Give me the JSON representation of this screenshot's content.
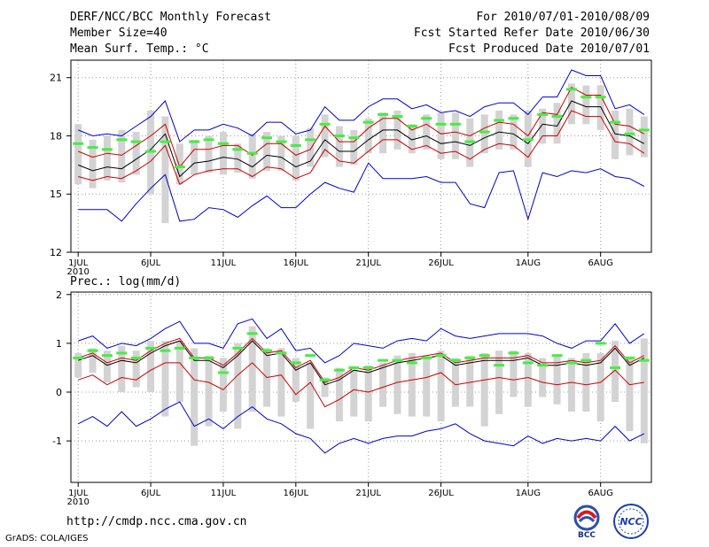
{
  "header": {
    "title": "DERF/NCC/BCC Monthly Forecast",
    "member_size": "Member Size=40",
    "variable": "Mean Surf. Temp.: °C",
    "period": "For 2010/07/01-2010/08/09",
    "started": "Fcst Started Refer Date 2010/06/30",
    "produced": "Fcst Produced Date 2010/07/01"
  },
  "footer": {
    "url": "http://cmdp.ncc.cma.gov.cn",
    "grads": "GrADS: COLA/IGES",
    "logo_bcc_text": "BCC",
    "logo_ncc_text": "NCC"
  },
  "colors": {
    "max": "#0000cc",
    "min": "#0000cc",
    "mean": "#000000",
    "spread": "#cc0000",
    "box": "#d3d3d3",
    "median": "#44ee44"
  },
  "chart_data": [
    {
      "type": "line",
      "title": "Mean Surf. Temp.: °C",
      "ylim": [
        12,
        21.9
      ],
      "yticks": [
        12,
        15,
        18,
        21
      ],
      "xlim": [
        0.5,
        40.5
      ],
      "xticks": [
        {
          "day": 1,
          "label": "1JUL"
        },
        {
          "day": 6,
          "label": "6JUL"
        },
        {
          "day": 11,
          "label": "11JUL"
        },
        {
          "day": 16,
          "label": "16JUL"
        },
        {
          "day": 21,
          "label": "21JUL"
        },
        {
          "day": 26,
          "label": "26JUL"
        },
        {
          "day": 32,
          "label": "1AUG"
        },
        {
          "day": 37,
          "label": "6AUG"
        }
      ],
      "year_label": "2010",
      "grid": true,
      "series": [
        {
          "name": "max",
          "values": [
            18.3,
            18,
            18.1,
            18,
            18.5,
            19,
            19.8,
            17.7,
            18.3,
            18.3,
            18.6,
            18.4,
            18,
            18.7,
            18.7,
            18.1,
            18.3,
            19.5,
            18.8,
            18.8,
            19.5,
            19.9,
            19.9,
            19.4,
            19.6,
            19.2,
            19.3,
            19,
            19.5,
            19.7,
            19.7,
            19.1,
            20,
            20,
            21.4,
            21.1,
            21.1,
            19.4,
            19.6,
            19.1
          ]
        },
        {
          "name": "upper",
          "values": [
            17.2,
            16.9,
            17.1,
            17,
            17.5,
            18,
            18.6,
            16.4,
            17.3,
            17.3,
            17.5,
            17.5,
            17,
            17.6,
            17.6,
            17,
            17.3,
            18.5,
            17.7,
            17.7,
            18.4,
            18.9,
            18.9,
            18.3,
            18.6,
            18.1,
            18.2,
            18,
            18.4,
            18.7,
            18.6,
            18,
            19.2,
            19.1,
            20.5,
            20.1,
            20.1,
            18.6,
            18.5,
            18.1
          ]
        },
        {
          "name": "mean",
          "values": [
            16.5,
            16.2,
            16.4,
            16.3,
            16.8,
            17.3,
            18.1,
            15.9,
            16.6,
            16.7,
            16.9,
            16.8,
            16.4,
            17,
            16.9,
            16.4,
            16.7,
            17.8,
            17.2,
            17.2,
            17.8,
            18.3,
            18.3,
            17.8,
            18,
            17.6,
            17.7,
            17.5,
            17.9,
            18.2,
            18.1,
            17.6,
            18.6,
            18.5,
            19.8,
            19.5,
            19.5,
            18.1,
            18,
            17.6
          ]
        },
        {
          "name": "lower",
          "values": [
            15.9,
            15.7,
            15.9,
            15.8,
            16.2,
            16.7,
            17.5,
            15.5,
            16,
            16.2,
            16.3,
            16.3,
            15.9,
            16.4,
            16.3,
            15.8,
            16.1,
            17.3,
            16.7,
            16.6,
            17.2,
            17.8,
            17.8,
            17.3,
            17.5,
            17.1,
            17.2,
            16.8,
            17.3,
            17.6,
            17.5,
            16.9,
            18,
            18,
            19.3,
            19,
            19,
            17.7,
            17.6,
            17.1
          ]
        },
        {
          "name": "min",
          "values": [
            14.2,
            14.2,
            14.2,
            13.6,
            14.5,
            15.3,
            16,
            13.6,
            13.7,
            14.3,
            14.2,
            13.8,
            14.4,
            14.9,
            14.3,
            14.3,
            15,
            15.6,
            15.3,
            15.1,
            16.6,
            15.8,
            15.8,
            15.8,
            15.9,
            15.6,
            15.6,
            14.5,
            14.3,
            16.1,
            16.2,
            13.7,
            16.1,
            15.9,
            16.2,
            16.1,
            16.3,
            15.9,
            15.8,
            15.4
          ]
        }
      ],
      "box_low": [
        15.5,
        15.3,
        15.7,
        15.6,
        16,
        15,
        13.5,
        15.5,
        16,
        16.1,
        16,
        16.1,
        15.8,
        16.2,
        16.2,
        15.7,
        16.4,
        16.9,
        16.4,
        16.5,
        17.1,
        17.1,
        17.3,
        17.1,
        17.3,
        16.8,
        16.8,
        16.4,
        17.1,
        17.3,
        17.3,
        16.4,
        17.6,
        17.6,
        18.6,
        18.6,
        18.3,
        16.8,
        17,
        16.9
      ],
      "box_high": [
        18.6,
        17.8,
        18,
        18.3,
        18.2,
        19.3,
        19,
        17.6,
        17.8,
        18,
        18.2,
        17.6,
        18.1,
        18.2,
        18,
        18,
        18.4,
        19.1,
        18.5,
        18.3,
        18.9,
        19.2,
        19.3,
        18.6,
        19.1,
        19.2,
        19.2,
        18.9,
        19.1,
        19.3,
        19.1,
        19.3,
        19.4,
        19.7,
        20.7,
        20.6,
        20.6,
        19.3,
        19.4,
        19
      ],
      "median": [
        17.6,
        17.4,
        17.3,
        17.8,
        17.7,
        17.2,
        17.7,
        16.4,
        17.7,
        17.8,
        17.6,
        17.3,
        17.1,
        17.9,
        17.7,
        17.5,
        17.8,
        18.6,
        18,
        17.9,
        18.7,
        19.1,
        19,
        18.5,
        18.9,
        18.6,
        18.6,
        17.7,
        18.2,
        18.8,
        18.9,
        17.8,
        19.1,
        19,
        20.4,
        20,
        20,
        18.7,
        18.1,
        18.3
      ]
    },
    {
      "type": "line",
      "title": "Prec.: log(mm/d)",
      "ylim": [
        -1.85,
        2.05
      ],
      "yticks": [
        -1,
        0,
        1,
        2
      ],
      "xlim": [
        0.5,
        40.5
      ],
      "xticks": [
        {
          "day": 1,
          "label": "1JUL"
        },
        {
          "day": 6,
          "label": "6JUL"
        },
        {
          "day": 11,
          "label": "11JUL"
        },
        {
          "day": 16,
          "label": "16JUL"
        },
        {
          "day": 21,
          "label": "21JUL"
        },
        {
          "day": 26,
          "label": "26JUL"
        },
        {
          "day": 32,
          "label": "1AUG"
        },
        {
          "day": 37,
          "label": "6AUG"
        }
      ],
      "year_label": "2010",
      "grid": true,
      "series": [
        {
          "name": "max",
          "values": [
            1.05,
            1.15,
            0.9,
            1,
            0.95,
            1.1,
            1.3,
            1.45,
            1,
            1,
            0.9,
            1.4,
            1.5,
            1.1,
            1.3,
            0.85,
            0.9,
            0.6,
            0.75,
            1,
            0.95,
            0.9,
            1.05,
            1.1,
            1.05,
            1.3,
            1.15,
            1.1,
            1.15,
            1.2,
            1.2,
            1.2,
            1.15,
            1,
            0.9,
            1.05,
            1.05,
            1.4,
            1,
            1.2
          ]
        },
        {
          "name": "upper",
          "values": [
            0.7,
            0.8,
            0.6,
            0.7,
            0.65,
            0.85,
            1,
            1.1,
            0.7,
            0.7,
            0.55,
            0.8,
            1.1,
            0.8,
            0.85,
            0.5,
            0.65,
            0.2,
            0.3,
            0.5,
            0.45,
            0.55,
            0.65,
            0.7,
            0.75,
            0.8,
            0.6,
            0.65,
            0.7,
            0.7,
            0.7,
            0.75,
            0.6,
            0.6,
            0.65,
            0.6,
            0.65,
            0.95,
            0.6,
            0.75
          ]
        },
        {
          "name": "mean",
          "values": [
            0.65,
            0.75,
            0.55,
            0.65,
            0.6,
            0.8,
            0.95,
            1.05,
            0.65,
            0.65,
            0.5,
            0.75,
            1.05,
            0.75,
            0.8,
            0.45,
            0.6,
            0.15,
            0.25,
            0.45,
            0.4,
            0.5,
            0.6,
            0.65,
            0.7,
            0.75,
            0.55,
            0.6,
            0.65,
            0.65,
            0.65,
            0.7,
            0.55,
            0.55,
            0.6,
            0.55,
            0.6,
            0.9,
            0.55,
            0.7
          ]
        },
        {
          "name": "lower",
          "values": [
            0.25,
            0.35,
            0.15,
            0.3,
            0.25,
            0.45,
            0.6,
            0.6,
            0.25,
            0.2,
            0.05,
            0.35,
            0.6,
            0.3,
            0.35,
            -0.05,
            0.2,
            -0.3,
            -0.15,
            0.05,
            0,
            0.1,
            0.2,
            0.25,
            0.3,
            0.4,
            0.15,
            0.2,
            0.25,
            0.3,
            0.25,
            0.3,
            0.2,
            0.15,
            0.2,
            0.15,
            0.2,
            0.45,
            0.15,
            0.2
          ]
        },
        {
          "name": "min",
          "values": [
            -0.65,
            -0.5,
            -0.7,
            -0.4,
            -0.7,
            -0.55,
            -0.35,
            -0.2,
            -0.7,
            -0.55,
            -0.75,
            -0.5,
            -0.3,
            -0.55,
            -0.65,
            -0.85,
            -0.95,
            -1.25,
            -1.05,
            -0.95,
            -1.05,
            -0.95,
            -0.9,
            -0.9,
            -0.8,
            -0.75,
            -0.65,
            -0.85,
            -1,
            -1.05,
            -1.1,
            -0.9,
            -1.05,
            -0.95,
            -1,
            -0.95,
            -1,
            -0.7,
            -1,
            -0.85
          ]
        },
        {
          "name": "max_tail",
          "values": [
            1.15
          ]
        }
      ],
      "box_low": [
        0.3,
        0.4,
        0.2,
        0,
        0.1,
        0,
        -0.5,
        -0.2,
        -1.1,
        -0.7,
        -0.4,
        -0.75,
        -0.4,
        -0.3,
        -0.5,
        -0.2,
        -0.75,
        -0.1,
        -0.6,
        -0.5,
        -0.6,
        -0.3,
        -0.45,
        -0.5,
        -0.5,
        -0.6,
        -0.3,
        -0.3,
        -0.7,
        -0.45,
        -0.1,
        -0.3,
        -0.1,
        -0.25,
        -0.4,
        -0.4,
        -0.6,
        -0.2,
        -0.8,
        -1.05
      ],
      "box_high": [
        0.8,
        0.9,
        0.85,
        0.95,
        0.85,
        1.05,
        1.05,
        1.05,
        0.9,
        0.75,
        0.7,
        1,
        1.35,
        0.9,
        0.9,
        0.7,
        0.6,
        0.3,
        0.5,
        0.45,
        0.55,
        0.6,
        0.75,
        0.8,
        0.75,
        0.85,
        0.7,
        0.75,
        0.8,
        0.85,
        0.85,
        0.8,
        0.7,
        0.75,
        0.7,
        0.8,
        0.8,
        1.05,
        0.7,
        1.1
      ],
      "median": [
        0.7,
        0.85,
        0.75,
        0.8,
        0.7,
        0.9,
        0.85,
        0.9,
        0.7,
        0.7,
        0.4,
        0.9,
        1.2,
        0.85,
        0.8,
        0.6,
        0.75,
        0.25,
        0.45,
        0.5,
        0.5,
        0.65,
        0.65,
        0.6,
        0.7,
        0.75,
        0.65,
        0.7,
        0.75,
        0.55,
        0.8,
        0.6,
        0.55,
        0.75,
        0.6,
        0.65,
        1,
        0.5,
        0.7,
        0.65
      ]
    }
  ]
}
